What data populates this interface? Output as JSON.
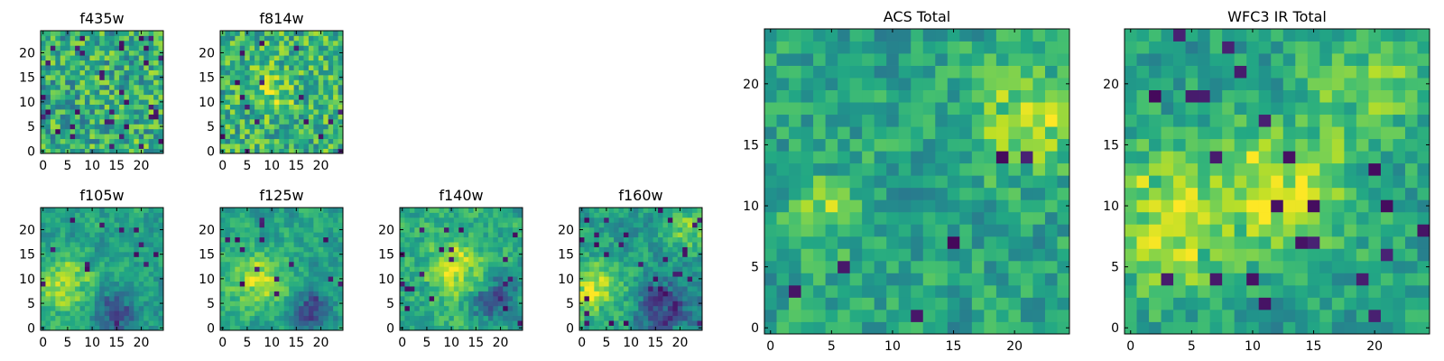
{
  "figure": {
    "colormap": "viridis",
    "background": "#ffffff"
  },
  "chart_data": [
    {
      "type": "heatmap",
      "title": "f435w",
      "xlabel": "",
      "ylabel": "",
      "grid_size": 25,
      "xlim": [
        -0.5,
        24.5
      ],
      "ylim": [
        -0.5,
        24.5
      ],
      "xticks": [
        "0",
        "5",
        "10",
        "15",
        "20"
      ],
      "yticks": [
        "0",
        "5",
        "10",
        "15",
        "20"
      ],
      "pattern": "uniform noise, many bright yellow-green cells, scattered dark purple pixels",
      "seed": 435,
      "mean": 0.62,
      "noise": 0.26,
      "smooth": 0.0,
      "dark_fraction": 0.04,
      "blobs": []
    },
    {
      "type": "heatmap",
      "title": "f814w",
      "xlabel": "",
      "ylabel": "",
      "grid_size": 25,
      "xlim": [
        -0.5,
        24.5
      ],
      "ylim": [
        -0.5,
        24.5
      ],
      "xticks": [
        "0",
        "5",
        "10",
        "15",
        "20"
      ],
      "yticks": [
        "0",
        "5",
        "10",
        "15",
        "20"
      ],
      "pattern": "uniform noise, mostly green-yellow, brighter band near center",
      "seed": 814,
      "mean": 0.64,
      "noise": 0.24,
      "smooth": 0.0,
      "dark_fraction": 0.03,
      "blobs": [
        {
          "x": 10,
          "y": 12,
          "r": 3,
          "amp": 0.2
        }
      ]
    },
    {
      "type": "heatmap",
      "title": "f105w",
      "xlabel": "",
      "ylabel": "",
      "grid_size": 25,
      "xlim": [
        -0.5,
        24.5
      ],
      "ylim": [
        -0.5,
        24.5
      ],
      "xticks": [
        "0",
        "5",
        "10",
        "15",
        "20"
      ],
      "yticks": [
        "0",
        "5",
        "10",
        "15",
        "20"
      ],
      "pattern": "smoother field, bright yellow region at left-center, dark pixels lower right",
      "seed": 105,
      "mean": 0.56,
      "noise": 0.2,
      "smooth": 0.5,
      "dark_fraction": 0.025,
      "blobs": [
        {
          "x": 4,
          "y": 9,
          "r": 4,
          "amp": 0.35
        },
        {
          "x": 15,
          "y": 3,
          "r": 3,
          "amp": -0.35
        }
      ]
    },
    {
      "type": "heatmap",
      "title": "f125w",
      "xlabel": "",
      "ylabel": "",
      "grid_size": 25,
      "xlim": [
        -0.5,
        24.5
      ],
      "ylim": [
        -0.5,
        24.5
      ],
      "xticks": [
        "0",
        "5",
        "10",
        "15",
        "20"
      ],
      "yticks": [
        "0",
        "5",
        "10",
        "15",
        "20"
      ],
      "pattern": "smoother field, yellow streaks across center, dark pixels lower right",
      "seed": 125,
      "mean": 0.58,
      "noise": 0.2,
      "smooth": 0.5,
      "dark_fraction": 0.025,
      "blobs": [
        {
          "x": 7,
          "y": 10,
          "r": 4,
          "amp": 0.3
        },
        {
          "x": 18,
          "y": 4,
          "r": 3,
          "amp": -0.35
        }
      ]
    },
    {
      "type": "heatmap",
      "title": "f140w",
      "xlabel": "",
      "ylabel": "",
      "grid_size": 25,
      "xlim": [
        -0.5,
        24.5
      ],
      "ylim": [
        -0.5,
        24.5
      ],
      "xticks": [
        "0",
        "5",
        "10",
        "15",
        "20"
      ],
      "yticks": [
        "0",
        "5",
        "10",
        "15",
        "20"
      ],
      "pattern": "yellow-green field with bright center, dark clumps lower right",
      "seed": 140,
      "mean": 0.6,
      "noise": 0.22,
      "smooth": 0.45,
      "dark_fraction": 0.03,
      "blobs": [
        {
          "x": 11,
          "y": 12,
          "r": 4,
          "amp": 0.3
        },
        {
          "x": 19,
          "y": 6,
          "r": 3,
          "amp": -0.4
        }
      ]
    },
    {
      "type": "heatmap",
      "title": "f160w",
      "xlabel": "",
      "ylabel": "",
      "grid_size": 25,
      "xlim": [
        -0.5,
        24.5
      ],
      "ylim": [
        -0.5,
        24.5
      ],
      "xticks": [
        "0",
        "5",
        "10",
        "15",
        "20"
      ],
      "yticks": [
        "0",
        "5",
        "10",
        "15",
        "20"
      ],
      "pattern": "bright yellow streak at left-center, several dark clumps right side",
      "seed": 160,
      "mean": 0.55,
      "noise": 0.22,
      "smooth": 0.5,
      "dark_fraction": 0.035,
      "blobs": [
        {
          "x": 3,
          "y": 8,
          "r": 4,
          "amp": 0.35
        },
        {
          "x": 17,
          "y": 4,
          "r": 4,
          "amp": -0.4
        },
        {
          "x": 22,
          "y": 20,
          "r": 3,
          "amp": 0.25
        }
      ]
    },
    {
      "type": "heatmap",
      "title": "ACS Total",
      "xlabel": "",
      "ylabel": "",
      "grid_size": 25,
      "xlim": [
        -0.5,
        24.5
      ],
      "ylim": [
        -0.5,
        24.5
      ],
      "xticks": [
        "0",
        "5",
        "10",
        "15",
        "20"
      ],
      "yticks": [
        "0",
        "5",
        "10",
        "15",
        "20"
      ],
      "pattern": "blocky green field with yellow patches, a few dark purple cells",
      "seed": 7,
      "mean": 0.58,
      "noise": 0.2,
      "smooth": 0.25,
      "dark_fraction": 0.015,
      "blobs": [
        {
          "x": 21,
          "y": 17,
          "r": 3,
          "amp": 0.3
        },
        {
          "x": 4,
          "y": 9,
          "r": 2,
          "amp": 0.25
        }
      ]
    },
    {
      "type": "heatmap",
      "title": "WFC3 IR Total",
      "xlabel": "",
      "ylabel": "",
      "grid_size": 25,
      "xlim": [
        -0.5,
        24.5
      ],
      "ylim": [
        -0.5,
        24.5
      ],
      "xticks": [
        "0",
        "5",
        "10",
        "15",
        "20"
      ],
      "yticks": [
        "0",
        "5",
        "10",
        "15",
        "20"
      ],
      "pattern": "bright yellow region left-center and center, dark purple clumps scattered",
      "seed": 33,
      "mean": 0.56,
      "noise": 0.2,
      "smooth": 0.3,
      "dark_fraction": 0.03,
      "blobs": [
        {
          "x": 3,
          "y": 9,
          "r": 4,
          "amp": 0.35
        },
        {
          "x": 13,
          "y": 12,
          "r": 4,
          "amp": 0.3
        },
        {
          "x": 20,
          "y": 20,
          "r": 3,
          "amp": 0.25
        }
      ]
    }
  ]
}
